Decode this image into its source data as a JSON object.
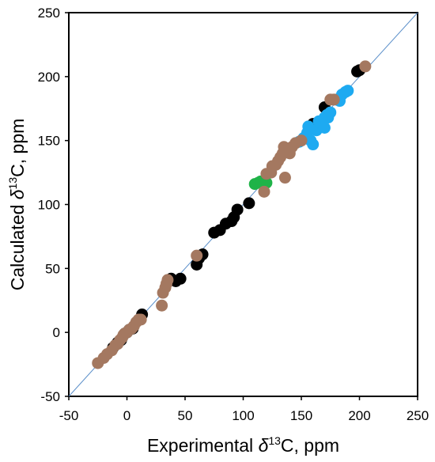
{
  "chart_data": {
    "type": "scatter",
    "title": "",
    "xlabel": {
      "prefix": "Experimental ",
      "symbol": "δ",
      "sup": "13",
      "suffix": "C, ppm"
    },
    "ylabel": {
      "prefix": "Calculated ",
      "symbol": "δ",
      "sup": "13",
      "suffix": "C, ppm"
    },
    "xlim": [
      -50,
      250
    ],
    "ylim": [
      -50,
      250
    ],
    "xticks": [
      -50,
      0,
      50,
      100,
      150,
      200,
      250
    ],
    "yticks": [
      -50,
      0,
      50,
      100,
      150,
      200,
      250
    ],
    "xtick_labels": [
      "-50",
      "0",
      "50",
      "100",
      "150",
      "200",
      "250"
    ],
    "ytick_labels": [
      "-50",
      "0",
      "50",
      "100",
      "150",
      "200",
      "250"
    ],
    "grid": false,
    "legend": "none",
    "reference_line": {
      "from": [
        -50,
        -50
      ],
      "to": [
        250,
        250
      ],
      "color": "#5b8fc9"
    },
    "series": [
      {
        "color": "#000000",
        "points": [
          [
            -12,
            -12
          ],
          [
            -8,
            -8
          ],
          [
            -5,
            -6
          ],
          [
            -2,
            -1
          ],
          [
            0,
            0
          ],
          [
            2,
            2
          ],
          [
            5,
            3
          ],
          [
            13,
            14
          ],
          [
            38,
            42
          ],
          [
            42,
            40
          ],
          [
            46,
            42
          ],
          [
            60,
            53
          ],
          [
            62,
            58
          ],
          [
            65,
            61
          ],
          [
            75,
            78
          ],
          [
            80,
            80
          ],
          [
            85,
            85
          ],
          [
            90,
            87
          ],
          [
            92,
            90
          ],
          [
            95,
            96
          ],
          [
            105,
            101
          ],
          [
            158,
            160
          ],
          [
            160,
            163
          ],
          [
            162,
            160
          ],
          [
            170,
            176
          ],
          [
            198,
            204
          ],
          [
            200,
            205
          ]
        ]
      },
      {
        "color": "#1eaaf1",
        "points": [
          [
            148,
            149
          ],
          [
            152,
            152
          ],
          [
            155,
            156
          ],
          [
            156,
            161
          ],
          [
            158,
            150
          ],
          [
            160,
            147
          ],
          [
            163,
            158
          ],
          [
            165,
            165
          ],
          [
            168,
            163
          ],
          [
            170,
            160
          ],
          [
            170,
            168
          ],
          [
            172,
            170
          ],
          [
            173,
            168
          ],
          [
            175,
            172
          ],
          [
            180,
            182
          ],
          [
            183,
            181
          ],
          [
            185,
            186
          ],
          [
            188,
            188
          ],
          [
            190,
            189
          ]
        ]
      },
      {
        "color": "#1fb348",
        "points": [
          [
            110,
            116
          ],
          [
            113,
            117
          ],
          [
            115,
            118
          ],
          [
            120,
            117
          ]
        ]
      },
      {
        "color": "#a47860",
        "points": [
          [
            -25,
            -24
          ],
          [
            -20,
            -20
          ],
          [
            -17,
            -17
          ],
          [
            -13,
            -14
          ],
          [
            -10,
            -10
          ],
          [
            -8,
            -9
          ],
          [
            -6,
            -6
          ],
          [
            -4,
            -4
          ],
          [
            -3,
            -2
          ],
          [
            -2,
            -1
          ],
          [
            0,
            0
          ],
          [
            2,
            2
          ],
          [
            4,
            3
          ],
          [
            6,
            5
          ],
          [
            8,
            8
          ],
          [
            10,
            10
          ],
          [
            12,
            10
          ],
          [
            30,
            21
          ],
          [
            31,
            31
          ],
          [
            33,
            35
          ],
          [
            34,
            38
          ],
          [
            35,
            41
          ],
          [
            60,
            60
          ],
          [
            118,
            110
          ],
          [
            120,
            124
          ],
          [
            124,
            125
          ],
          [
            125,
            130
          ],
          [
            128,
            131
          ],
          [
            130,
            134
          ],
          [
            132,
            137
          ],
          [
            134,
            140
          ],
          [
            135,
            145
          ],
          [
            136,
            121
          ],
          [
            138,
            143
          ],
          [
            140,
            140
          ],
          [
            142,
            145
          ],
          [
            145,
            148
          ],
          [
            150,
            150
          ],
          [
            175,
            182
          ],
          [
            178,
            182
          ],
          [
            205,
            208
          ]
        ]
      }
    ]
  }
}
